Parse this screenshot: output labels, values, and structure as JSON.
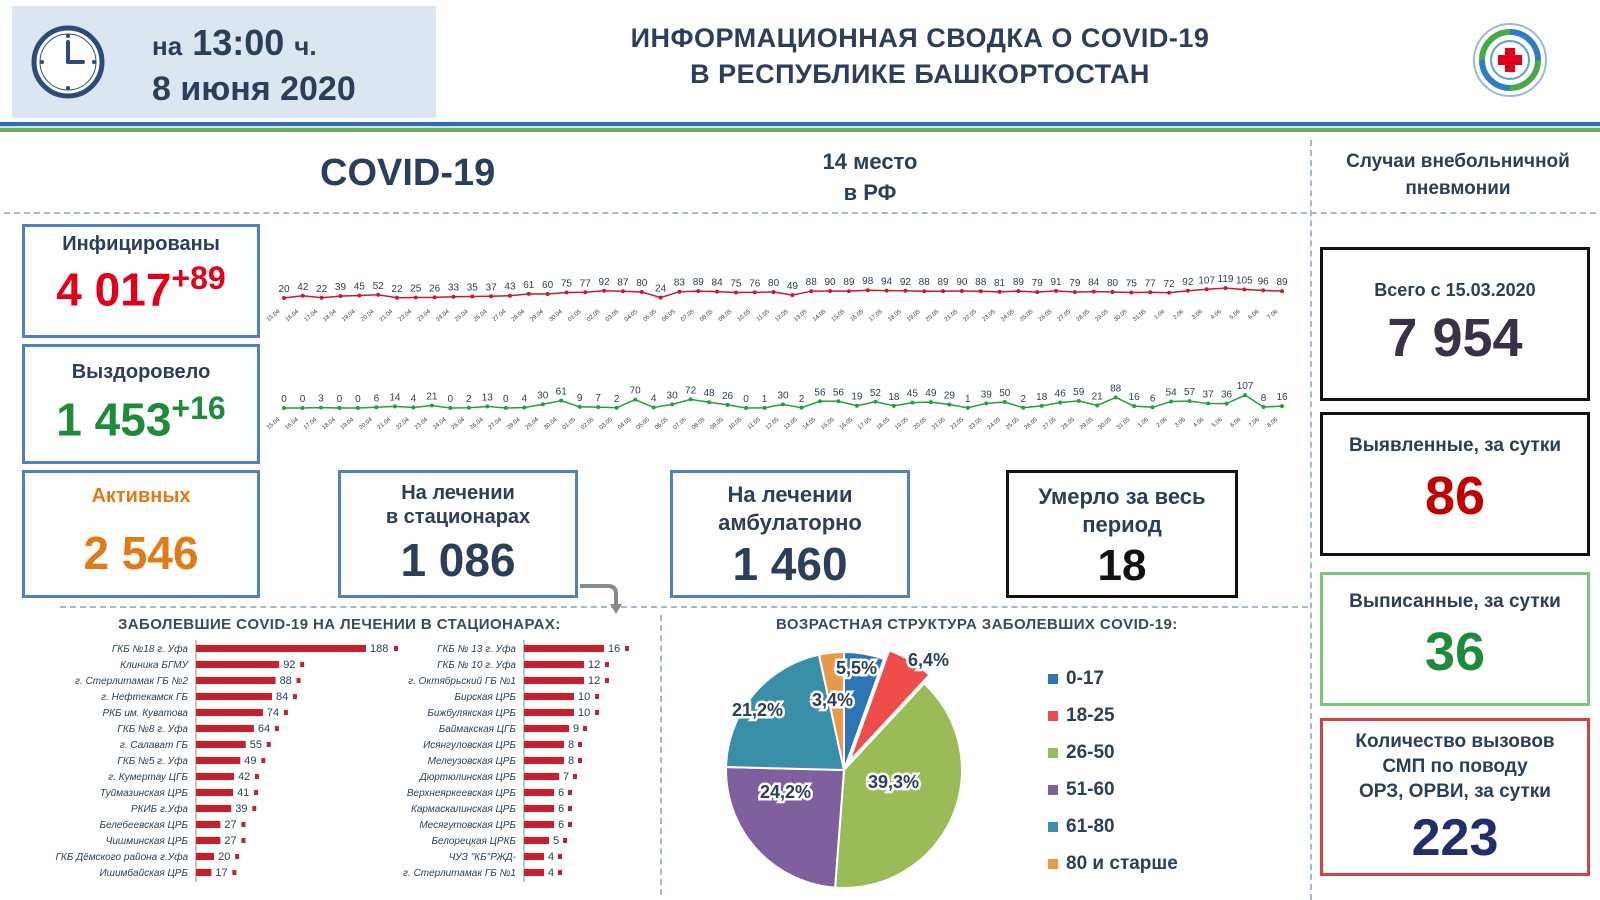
{
  "header": {
    "time_prefix": "на",
    "time": "13:00",
    "time_suffix": "ч.",
    "date": "8 июня 2020",
    "title_line1": "ИНФОРМАЦИОННАЯ СВОДКА О COVID-19",
    "title_line2": "В РЕСПУБЛИКЕ БАШКОРТОСТАН",
    "icons": [
      "clock-icon",
      "ministry-logo"
    ]
  },
  "sections": {
    "covid_title": "COVID-19",
    "rank_line1": "14 место",
    "rank_line2": "в РФ",
    "pneumonia_line1": "Случаи внебольничной",
    "pneumonia_line2": "пневмонии"
  },
  "stats": {
    "infected": {
      "label": "Инфицированы",
      "value": "4 017",
      "delta": "+89"
    },
    "recovered": {
      "label": "Выздоровело",
      "value": "1 453",
      "delta": "+16"
    },
    "active": {
      "label": "Активных",
      "value": "2 546"
    },
    "hospital": {
      "label_line1": "На лечении",
      "label_line2": "в стационарах",
      "value": "1 086"
    },
    "outpatient": {
      "label_line1": "На лечении",
      "label_line2": "амбулаторно",
      "value": "1 460"
    },
    "deaths": {
      "label_line1": "Умерло за весь",
      "label_line2": "период",
      "value": "18"
    }
  },
  "pneumonia": {
    "total": {
      "label": "Всего с 15.03.2020",
      "value": "7 954"
    },
    "detected": {
      "label": "Выявленные, за сутки",
      "value": "86"
    },
    "discharged": {
      "label": "Выписанные, за сутки",
      "value": "36"
    },
    "calls": {
      "label_line1": "Количество вызовов",
      "label_line2": "СМП по поводу",
      "label_line3": "ОРЗ, ОРВИ, за сутки",
      "value": "223"
    }
  },
  "colors": {
    "navy": "#2b3e5a",
    "blue_border": "#4f81bd",
    "red": "#e0001b",
    "dark_red": "#c00000",
    "green": "#1e8a3a",
    "orange": "#e07b1a",
    "bar_red": "#c8202a",
    "infected_line": "#c0202a",
    "recovered_line": "#22a03a"
  },
  "chart_data": [
    {
      "type": "line",
      "series": [
        {
          "name": "",
          "values": [
            20,
            42,
            22,
            39,
            45,
            52,
            22,
            25,
            26,
            33,
            35,
            37,
            43,
            61,
            60,
            75,
            77,
            92,
            87,
            80,
            24,
            83,
            89,
            84,
            75,
            76,
            80,
            49,
            88,
            90,
            89,
            98,
            94,
            92,
            88,
            89,
            90,
            88,
            81,
            89,
            79,
            91,
            79,
            84,
            80,
            75,
            77,
            72,
            92,
            107,
            119,
            105,
            96,
            89
          ]
        }
      ],
      "x": [
        "15.04",
        "16.04",
        "17.04",
        "18.04",
        "19.04",
        "20.04",
        "21.04",
        "22.04",
        "23.04",
        "24.04",
        "25.04",
        "26.04",
        "27.04",
        "28.04",
        "29.04",
        "30.04",
        "01.05",
        "02.05",
        "03.05",
        "04.05",
        "05.05",
        "06.05",
        "07.05",
        "08.05",
        "09.05",
        "10.05",
        "11.05",
        "12.05",
        "13.05",
        "14.05",
        "15.05",
        "16.05",
        "17.05",
        "18.05",
        "19.05",
        "20.05",
        "21.05",
        "22.05",
        "23.05",
        "24.05",
        "25.05",
        "26.05",
        "27.05",
        "28.05",
        "29.05",
        "30.05",
        "31.05",
        "1.06",
        "2.06",
        "3.06",
        "4.06",
        "5.06",
        "6.06",
        "7.06"
      ]
    },
    {
      "type": "line",
      "series": [
        {
          "name": "",
          "values": [
            0,
            0,
            3,
            0,
            0,
            6,
            14,
            4,
            21,
            0,
            2,
            13,
            0,
            4,
            30,
            61,
            9,
            7,
            2,
            70,
            4,
            30,
            72,
            48,
            26,
            0,
            1,
            30,
            2,
            56,
            56,
            19,
            52,
            18,
            45,
            49,
            29,
            1,
            39,
            50,
            2,
            18,
            46,
            59,
            21,
            88,
            16,
            6,
            54,
            57,
            37,
            36,
            107,
            8,
            16
          ]
        }
      ],
      "x": [
        "15.04",
        "16.04",
        "17.04",
        "18.04",
        "19.04",
        "20.04",
        "21.04",
        "22.04",
        "23.04",
        "24.04",
        "25.04",
        "26.04",
        "27.04",
        "28.04",
        "29.04",
        "30.04",
        "01.05",
        "02.05",
        "03.05",
        "04.05",
        "05.05",
        "06.05",
        "07.05",
        "08.05",
        "09.05",
        "10.05",
        "11.05",
        "12.05",
        "13.05",
        "14.05",
        "15.05",
        "16.05",
        "17.05",
        "18.05",
        "19.05",
        "20.05",
        "21.05",
        "22.05",
        "23.05",
        "24.05",
        "25.05",
        "26.05",
        "27.05",
        "28.05",
        "29.05",
        "30.05",
        "31.05",
        "1.06",
        "2.06",
        "3.06",
        "4.06",
        "5.06",
        "6.06",
        "7.06",
        "8.06"
      ]
    },
    {
      "type": "bar",
      "title": "ЗАБОЛЕВШИЕ COVID-19 НА ЛЕЧЕНИИ В СТАЦИОНАРАХ:",
      "categories": [
        "ГКБ №18 г. Уфа",
        "Клиника БГМУ",
        "г. Стерлитамак ГБ №2",
        "г. Нефтекамск ГБ",
        "РКБ им. Куватова",
        "ГКБ №8 г. Уфа",
        "г. Салават ГБ",
        "ГКБ №5 г. Уфа",
        "г. Кумертау ЦГБ",
        "Туймазинская ЦРБ",
        "РКИБ г.Уфа",
        "Белебеевская ЦРБ",
        "Чишминская ЦРБ",
        "ГКБ Дёмского района г.Уфа",
        "Ишимбайская ЦРБ"
      ],
      "values": [
        188,
        92,
        88,
        84,
        74,
        64,
        55,
        49,
        42,
        41,
        39,
        27,
        27,
        20,
        17
      ]
    },
    {
      "type": "bar",
      "categories": [
        "ГКБ № 13 г. Уфа",
        "ГКБ № 10 г. Уфа",
        "г. Октябрьский ГБ №1",
        "Бирская ЦРБ",
        "Бижбулякская ЦРБ",
        "Баймакская ЦГБ",
        "Исянгуловская ЦРБ",
        "Мелеузовская ЦРБ",
        "Дюртюлинская ЦРБ",
        "Верхнеяркеевская ЦРБ",
        "Кармаскалинская ЦРБ",
        "Месягутовская ЦРБ",
        "Белорецкая ЦРКБ",
        "ЧУЗ \"КБ\"РЖД-",
        "г. Стерлитамак ГБ №1"
      ],
      "values": [
        16,
        12,
        12,
        10,
        10,
        9,
        8,
        8,
        7,
        6,
        6,
        6,
        5,
        4,
        4
      ]
    },
    {
      "type": "pie",
      "title": "ВОЗРАСТНАЯ СТРУКТУРА ЗАБОЛЕВШИХ COVID-19:",
      "categories": [
        "0-17",
        "18-25",
        "26-50",
        "51-60",
        "61-80",
        "80 и старше"
      ],
      "values": [
        5.5,
        6.4,
        39.3,
        24.2,
        21.2,
        3.4
      ],
      "labels": [
        "5,5%",
        "6,4%",
        "39,3%",
        "24,2%",
        "21,2%",
        "3,4%"
      ],
      "colors": [
        "#2e75b6",
        "#ef4c4c",
        "#9bbb59",
        "#7f5f9e",
        "#3a8fa8",
        "#e69a4a"
      ]
    }
  ]
}
